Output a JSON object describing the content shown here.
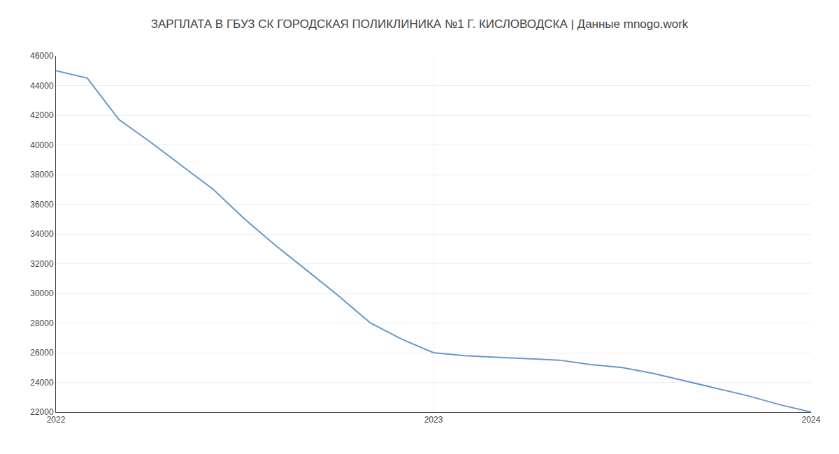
{
  "chart_data": {
    "type": "line",
    "title": "ЗАРПЛАТА В ГБУЗ СК ГОРОДСКАЯ ПОЛИКЛИНИКА №1 Г. КИСЛОВОДСКА | Данные mnogo.work",
    "x": [
      2022.0,
      2022.083,
      2022.167,
      2022.25,
      2022.333,
      2022.417,
      2022.5,
      2022.583,
      2022.667,
      2022.75,
      2022.833,
      2022.917,
      2023.0,
      2023.083,
      2023.167,
      2023.25,
      2023.333,
      2023.417,
      2023.5,
      2023.583,
      2023.667,
      2023.75,
      2023.833,
      2023.917,
      2024.0
    ],
    "values": [
      45000,
      44500,
      41700,
      40200,
      38600,
      37000,
      35000,
      33200,
      31500,
      29800,
      28000,
      26900,
      26000,
      25800,
      25700,
      25600,
      25500,
      25200,
      25000,
      24600,
      24100,
      23600,
      23100,
      22500,
      22000
    ],
    "color": "#6699cc",
    "xlim": [
      2022.0,
      2024.0
    ],
    "xticks": [
      2022,
      2023,
      2024
    ],
    "ylim": [
      22000,
      46000
    ],
    "yticks": [
      22000,
      24000,
      26000,
      28000,
      30000,
      32000,
      34000,
      36000,
      38000,
      40000,
      42000,
      44000,
      46000
    ],
    "grid": true
  }
}
